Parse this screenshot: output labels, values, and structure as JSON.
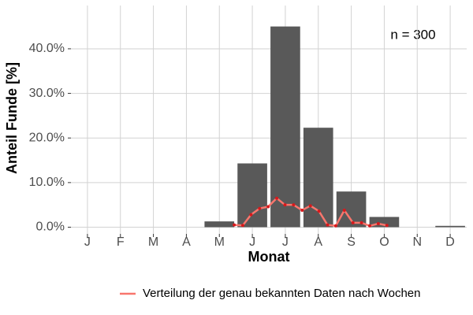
{
  "chart_data": {
    "type": "bar",
    "annotation": "n = 300",
    "x_label": "Monat",
    "y_label": "Anteil Funde [%]",
    "categories": [
      "J",
      "F",
      "M",
      "A",
      "M",
      "J",
      "J",
      "A",
      "S",
      "O",
      "N",
      "D"
    ],
    "values": [
      0,
      0,
      0,
      0,
      1.3,
      14.3,
      45,
      22.3,
      8,
      2.3,
      0,
      0.3
    ],
    "color": "#595959",
    "xlim": [
      0.5,
      12.5
    ],
    "ylim": [
      -1.5,
      49.7
    ],
    "yticks": [
      {
        "value": 0,
        "label": "0.0%"
      },
      {
        "value": 10,
        "label": "10.0%"
      },
      {
        "value": 20,
        "label": "20.0%"
      },
      {
        "value": 30,
        "label": "30.0%"
      },
      {
        "value": 40,
        "label": "40.0%"
      }
    ],
    "grid": true,
    "line": {
      "type": "line",
      "name": "Verteilung der genau bekannten Daten nach Wochen",
      "color": "#f8766d",
      "point_color": "#d7191c",
      "x": [
        5.45,
        5.71,
        5.96,
        6.22,
        6.48,
        6.74,
        6.99,
        7.25,
        7.51,
        7.76,
        8.02,
        8.28,
        8.53,
        8.79,
        9.05,
        9.31,
        9.56,
        9.82,
        10.08
      ],
      "values": [
        0.5,
        0.4,
        2.8,
        4.2,
        4.6,
        6.5,
        5.0,
        5.0,
        3.8,
        4.8,
        3.6,
        0.5,
        0.3,
        3.8,
        1.0,
        1.0,
        0.3,
        0.8,
        0.4
      ]
    },
    "legend": "bottom"
  }
}
